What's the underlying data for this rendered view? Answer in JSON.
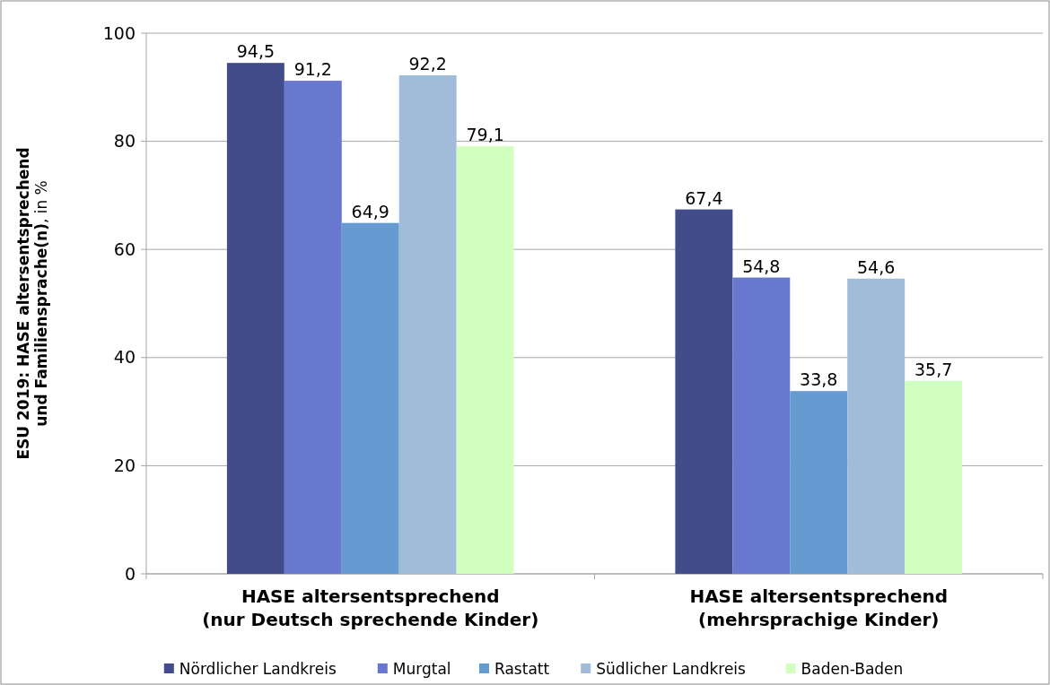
{
  "chart_data": {
    "type": "bar",
    "ylabel": "ESU 2019: HASE altersentsprechend und Familiensprache(n), in %",
    "categories": [
      "HASE altersentsprechend\n(nur Deutsch sprechende Kinder)",
      "HASE altersentsprechend\n(mehrsprachige Kinder)"
    ],
    "series": [
      {
        "name": "Nördlicher Landkreis",
        "color": "#434c8a",
        "values": [
          94.5,
          67.4
        ],
        "value_labels": [
          "94,5",
          "67,4"
        ]
      },
      {
        "name": "Murgtal",
        "color": "#6878cf",
        "values": [
          91.2,
          54.8
        ],
        "value_labels": [
          "91,2",
          "54,8"
        ]
      },
      {
        "name": "Rastatt",
        "color": "#659bd0",
        "values": [
          64.9,
          33.8
        ],
        "value_labels": [
          "64,9",
          "33,8"
        ]
      },
      {
        "name": "Südlicher Landkreis",
        "color": "#a0bcd8",
        "values": [
          92.2,
          54.6
        ],
        "value_labels": [
          "92,2",
          "54,6"
        ]
      },
      {
        "name": "Baden-Baden",
        "color": "#d2ffc0",
        "values": [
          79.1,
          35.7
        ],
        "value_labels": [
          "79,1",
          "35,7"
        ]
      }
    ],
    "ylim": [
      0,
      100
    ],
    "yticks": [
      0,
      20,
      40,
      60,
      80,
      100
    ],
    "grid": "y",
    "legend": "bottom"
  }
}
